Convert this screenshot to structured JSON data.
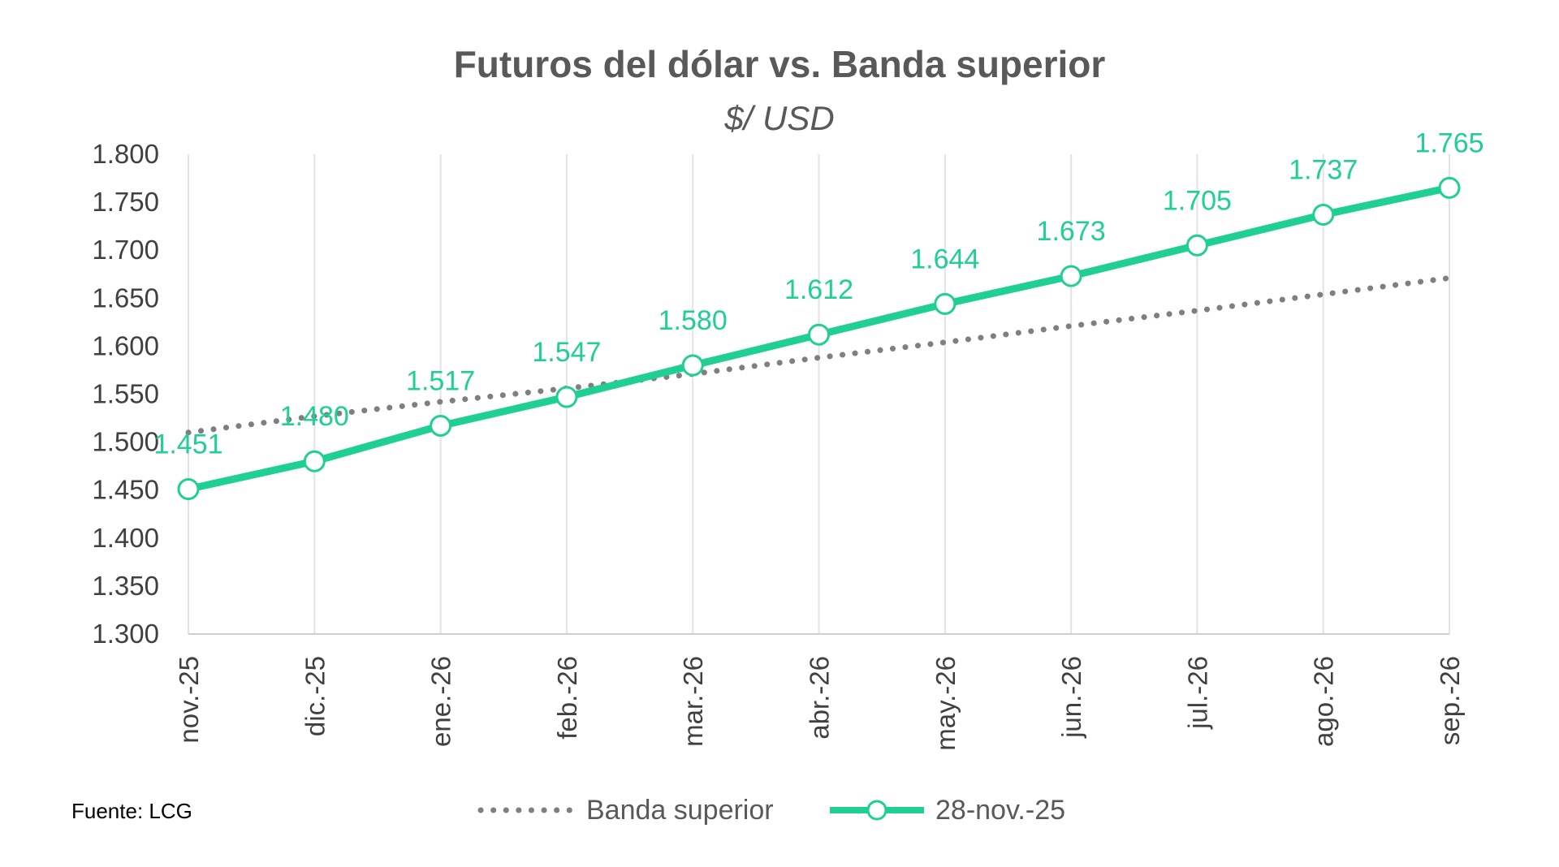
{
  "chart_data": {
    "type": "line",
    "title": "Futuros del dólar vs. Banda superior",
    "subtitle": "$/ USD",
    "categories": [
      "nov.-25",
      "dic.-25",
      "ene.-26",
      "feb.-26",
      "mar.-26",
      "abr.-26",
      "may.-26",
      "jun.-26",
      "jul.-26",
      "ago.-26",
      "sep.-26"
    ],
    "ylim": [
      1300,
      1800
    ],
    "yticks": [
      1300,
      1350,
      1400,
      1450,
      1500,
      1550,
      1600,
      1650,
      1700,
      1750,
      1800
    ],
    "ytick_labels": [
      "1.300",
      "1.350",
      "1.400",
      "1.450",
      "1.500",
      "1.550",
      "1.600",
      "1.650",
      "1.700",
      "1.750",
      "1.800"
    ],
    "grid": "vertical",
    "legend_position": "bottom",
    "series": [
      {
        "name": "Banda superior",
        "style": "dotted",
        "color": "#7f7f7f",
        "values": [
          1510,
          1527,
          1542,
          1556,
          1571,
          1588,
          1604,
          1621,
          1637,
          1654,
          1671
        ]
      },
      {
        "name": "28-nov.-25",
        "style": "solid-markers",
        "color": "#1fcf94",
        "values": [
          1451,
          1480,
          1517,
          1547,
          1580,
          1612,
          1644,
          1673,
          1705,
          1737,
          1765
        ],
        "labels": [
          "1.451",
          "1.480",
          "1.517",
          "1.547",
          "1.580",
          "1.612",
          "1.644",
          "1.673",
          "1.705",
          "1.737",
          "1.765"
        ]
      }
    ]
  },
  "footer": {
    "source": "Fuente: LCG"
  },
  "legend": [
    {
      "label": "Banda superior"
    },
    {
      "label": "28-nov.-25"
    }
  ]
}
